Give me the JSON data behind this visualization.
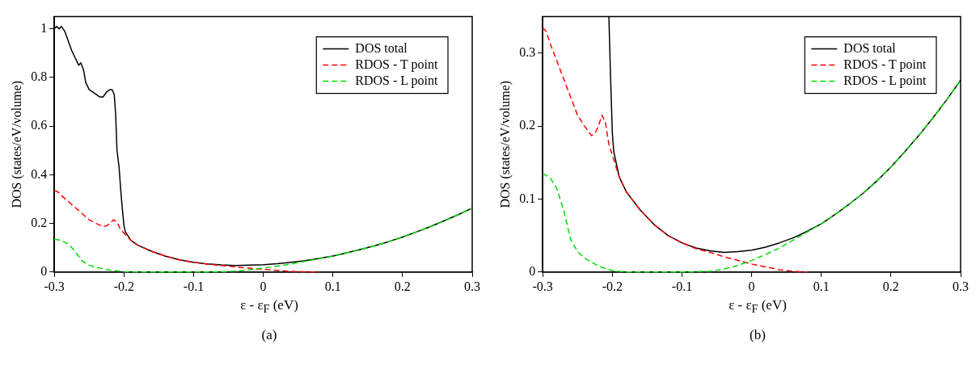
{
  "chart_data": [
    {
      "type": "line",
      "xlabel": "ε - ε$_{F}$ (eV)",
      "ylabel": "DOS (states/eV/volume)",
      "xlim": [
        -0.3,
        0.3
      ],
      "xticks": [
        -0.3,
        -0.2,
        -0.1,
        0,
        0.1,
        0.2,
        0.3
      ],
      "ylim": [
        0,
        1.05
      ],
      "yticks": [
        0,
        0.2,
        0.4,
        0.6,
        0.8,
        1
      ],
      "legend": "top right",
      "annotations": [
        "(a)"
      ],
      "series": [
        {
          "name": "DOS total",
          "color": "#000000",
          "line_style": "solid",
          "x": [
            -0.3,
            -0.297,
            -0.293,
            -0.29,
            -0.285,
            -0.28,
            -0.275,
            -0.27,
            -0.265,
            -0.262,
            -0.258,
            -0.255,
            -0.25,
            -0.245,
            -0.24,
            -0.235,
            -0.23,
            -0.225,
            -0.22,
            -0.217,
            -0.214,
            -0.212,
            -0.21,
            -0.207,
            -0.205,
            -0.203,
            -0.2,
            -0.198,
            -0.19,
            -0.18,
            -0.16,
            -0.14,
            -0.12,
            -0.1,
            -0.08,
            -0.06,
            -0.04,
            -0.02,
            0,
            0.02,
            0.04,
            0.06,
            0.08,
            0.1,
            0.12,
            0.14,
            0.16,
            0.18,
            0.2,
            0.22,
            0.24,
            0.26,
            0.28,
            0.3
          ],
          "values": [
            1.0,
            1.01,
            1.0,
            1.01,
            0.99,
            0.95,
            0.91,
            0.88,
            0.85,
            0.86,
            0.83,
            0.78,
            0.75,
            0.74,
            0.73,
            0.72,
            0.72,
            0.74,
            0.75,
            0.75,
            0.73,
            0.65,
            0.5,
            0.43,
            0.35,
            0.28,
            0.19,
            0.165,
            0.13,
            0.11,
            0.085,
            0.065,
            0.05,
            0.04,
            0.033,
            0.029,
            0.027,
            0.028,
            0.03,
            0.034,
            0.04,
            0.047,
            0.056,
            0.066,
            0.079,
            0.093,
            0.108,
            0.125,
            0.144,
            0.165,
            0.187,
            0.211,
            0.236,
            0.263
          ]
        },
        {
          "name": "RDOS - T point",
          "color": "#ff0000",
          "line_style": "dashed",
          "x": [
            -0.3,
            -0.295,
            -0.29,
            -0.28,
            -0.27,
            -0.26,
            -0.25,
            -0.24,
            -0.23,
            -0.225,
            -0.22,
            -0.215,
            -0.21,
            -0.205,
            -0.2,
            -0.19,
            -0.18,
            -0.16,
            -0.14,
            -0.12,
            -0.1,
            -0.08,
            -0.06,
            -0.04,
            -0.02,
            0,
            0.02,
            0.04,
            0.06,
            0.08
          ],
          "values": [
            0.335,
            0.33,
            0.315,
            0.29,
            0.265,
            0.24,
            0.215,
            0.2,
            0.187,
            0.19,
            0.2,
            0.215,
            0.205,
            0.175,
            0.16,
            0.13,
            0.11,
            0.085,
            0.065,
            0.05,
            0.04,
            0.032,
            0.027,
            0.021,
            0.016,
            0.011,
            0.007,
            0.003,
            0.001,
            0
          ]
        },
        {
          "name": "RDOS - L point",
          "color": "#00dd00",
          "line_style": "dashed",
          "x": [
            -0.3,
            -0.29,
            -0.28,
            -0.27,
            -0.26,
            -0.25,
            -0.24,
            -0.22,
            -0.2,
            -0.18,
            -0.1,
            -0.06,
            -0.04,
            -0.02,
            0,
            0.02,
            0.04,
            0.06,
            0.08,
            0.1,
            0.12,
            0.14,
            0.16,
            0.18,
            0.2,
            0.22,
            0.24,
            0.26,
            0.28,
            0.3
          ],
          "values": [
            0.135,
            0.13,
            0.115,
            0.085,
            0.045,
            0.028,
            0.019,
            0.008,
            0.002,
            0,
            0,
            0.001,
            0.004,
            0.009,
            0.016,
            0.024,
            0.033,
            0.044,
            0.055,
            0.066,
            0.079,
            0.093,
            0.108,
            0.125,
            0.144,
            0.165,
            0.187,
            0.211,
            0.236,
            0.263
          ]
        }
      ]
    },
    {
      "type": "line",
      "xlabel": "ε - ε$_{F}$ (eV)",
      "ylabel": "DOS (states/eV/volume)",
      "xlim": [
        -0.3,
        0.3
      ],
      "xticks": [
        -0.3,
        -0.2,
        -0.1,
        0,
        0.1,
        0.2,
        0.3
      ],
      "ylim": [
        0,
        0.35
      ],
      "yticks": [
        0,
        0.1,
        0.2,
        0.3
      ],
      "legend": "top right",
      "annotations": [
        "(b)"
      ],
      "series": [
        {
          "name": "DOS total",
          "color": "#000000",
          "line_style": "solid",
          "x": [
            -0.205,
            -0.203,
            -0.2,
            -0.198,
            -0.19,
            -0.18,
            -0.16,
            -0.14,
            -0.12,
            -0.1,
            -0.08,
            -0.06,
            -0.04,
            -0.02,
            0,
            0.02,
            0.04,
            0.06,
            0.08,
            0.1,
            0.12,
            0.14,
            0.16,
            0.18,
            0.2,
            0.22,
            0.24,
            0.26,
            0.28,
            0.3
          ],
          "values": [
            0.35,
            0.28,
            0.19,
            0.165,
            0.13,
            0.11,
            0.085,
            0.065,
            0.05,
            0.04,
            0.033,
            0.029,
            0.027,
            0.028,
            0.03,
            0.034,
            0.04,
            0.047,
            0.056,
            0.066,
            0.079,
            0.093,
            0.108,
            0.125,
            0.144,
            0.165,
            0.187,
            0.211,
            0.236,
            0.263
          ]
        },
        {
          "name": "RDOS - T point",
          "color": "#ff0000",
          "line_style": "dashed",
          "x": [
            -0.3,
            -0.295,
            -0.29,
            -0.28,
            -0.27,
            -0.26,
            -0.25,
            -0.24,
            -0.23,
            -0.225,
            -0.22,
            -0.215,
            -0.21,
            -0.205,
            -0.2,
            -0.19,
            -0.18,
            -0.16,
            -0.14,
            -0.12,
            -0.1,
            -0.08,
            -0.06,
            -0.04,
            -0.02,
            0,
            0.02,
            0.04,
            0.06,
            0.08
          ],
          "values": [
            0.335,
            0.33,
            0.315,
            0.29,
            0.265,
            0.24,
            0.215,
            0.2,
            0.187,
            0.19,
            0.2,
            0.215,
            0.205,
            0.175,
            0.16,
            0.13,
            0.11,
            0.085,
            0.065,
            0.05,
            0.04,
            0.032,
            0.027,
            0.021,
            0.016,
            0.011,
            0.007,
            0.003,
            0.001,
            0
          ]
        },
        {
          "name": "RDOS - L point",
          "color": "#00dd00",
          "line_style": "dashed",
          "x": [
            -0.3,
            -0.29,
            -0.28,
            -0.27,
            -0.26,
            -0.25,
            -0.24,
            -0.22,
            -0.2,
            -0.18,
            -0.1,
            -0.06,
            -0.04,
            -0.02,
            0,
            0.02,
            0.04,
            0.06,
            0.08,
            0.1,
            0.12,
            0.14,
            0.16,
            0.18,
            0.2,
            0.22,
            0.24,
            0.26,
            0.28,
            0.3
          ],
          "values": [
            0.135,
            0.13,
            0.115,
            0.085,
            0.045,
            0.028,
            0.019,
            0.008,
            0.002,
            0,
            0,
            0.001,
            0.004,
            0.009,
            0.016,
            0.024,
            0.033,
            0.044,
            0.055,
            0.066,
            0.079,
            0.093,
            0.108,
            0.125,
            0.144,
            0.165,
            0.187,
            0.211,
            0.236,
            0.263
          ]
        }
      ]
    }
  ]
}
